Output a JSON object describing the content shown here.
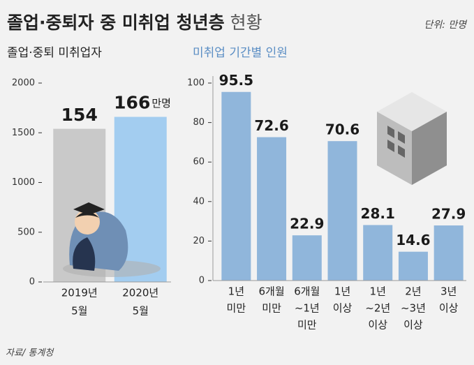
{
  "header": {
    "title_bold": "졸업·중퇴자 중 미취업 청년층",
    "title_light": "현황",
    "unit": "단위: 만명"
  },
  "chart_data": [
    {
      "type": "bar",
      "title": "졸업·중퇴 미취업자",
      "categories": [
        [
          "2019년",
          "5월"
        ],
        [
          "2020년",
          "5월"
        ]
      ],
      "values": [
        1540,
        1660
      ],
      "value_labels": [
        "154",
        "166"
      ],
      "unit_annotation": "만명",
      "colors": [
        "#c9c9c9",
        "#a3cdf0"
      ],
      "ylim": [
        0,
        2000
      ],
      "yticks": [
        0,
        500,
        1000,
        1500,
        2000
      ]
    },
    {
      "type": "bar",
      "title": "미취업 기간별 인원",
      "categories": [
        [
          "1년",
          "미만"
        ],
        [
          "6개월",
          "미만"
        ],
        [
          "6개월",
          "~1년",
          "미만"
        ],
        [
          "1년",
          "이상"
        ],
        [
          "1년",
          "~2년",
          "이상"
        ],
        [
          "2년",
          "~3년",
          "이상"
        ],
        [
          "3년",
          "이상"
        ]
      ],
      "values": [
        95.5,
        72.6,
        22.9,
        70.6,
        28.1,
        14.6,
        27.9
      ],
      "colors": [
        "#90b6db",
        "#90b6db",
        "#90b6db",
        "#90b6db",
        "#90b6db",
        "#90b6db",
        "#90b6db"
      ],
      "ylim": [
        0,
        100
      ],
      "yticks": [
        0,
        20,
        40,
        60,
        80,
        100
      ]
    }
  ],
  "source": "자료/ 통계청"
}
